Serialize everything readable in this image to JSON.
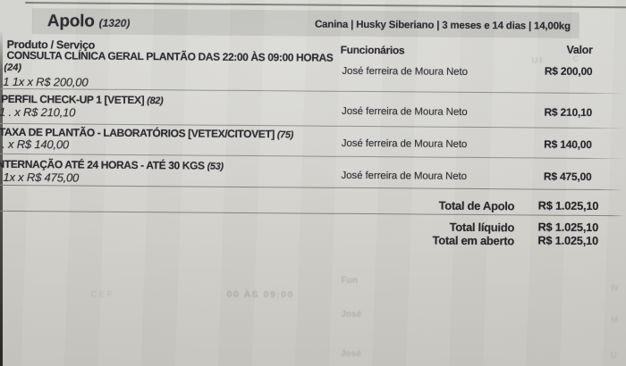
{
  "patient": {
    "name": "Apolo",
    "code": "(1320)",
    "info": "Canina | Husky Siberiano | 3 meses e 14 dias | 14,00kg"
  },
  "columns": {
    "product": "Produto / Serviço",
    "staff": "Funcionários",
    "value": "Valor"
  },
  "rows": [
    {
      "name": "CONSULTA CLÍNICA GERAL PLANTÃO DAS 22:00 ÀS 09:00 HORAS",
      "code": "(24)",
      "qty": "1 1x x R$ 200,00",
      "staff": "José ferreira de Moura Neto",
      "value": "R$ 200,00"
    },
    {
      "name": "PERFIL CHECK-UP 1 [VETEX]",
      "code": "(82)",
      "qty": "1 . x R$ 210,10",
      "staff": "José ferreira de Moura Neto",
      "value": "R$ 210,10"
    },
    {
      "name": "TAXA DE PLANTÃO - LABORATÓRIOS [VETEX/CITOVET]",
      "code": "(75)",
      "qty": "1 . x R$ 140,00",
      "staff": "José ferreira de Moura Neto",
      "value": "R$ 140,00"
    },
    {
      "name": "NTERNAÇÃO ATÉ 24 HORAS - ATÉ 30 KGS",
      "code": "(53)",
      "qty": "1x x R$ 475,00",
      "staff": "José ferreira de Moura Neto",
      "value": "R$ 475,00"
    }
  ],
  "totals": [
    {
      "label": "Total de Apolo",
      "value": "R$ 1.025,10"
    },
    {
      "label": "Total líquido",
      "value": "R$ 1.025,10"
    },
    {
      "label": "Total em aberto",
      "value": "R$ 1.025,10"
    }
  ],
  "ghosts": [
    {
      "text": "00 ÀS 09:00"
    },
    {
      "text": "Fun"
    },
    {
      "text": "José"
    },
    {
      "text": "José"
    },
    {
      "text": "UI"
    },
    {
      "text": "C"
    },
    {
      "text": "CEF"
    },
    {
      "text": "IV"
    },
    {
      "text": "M"
    },
    {
      "text": "U"
    }
  ],
  "colors": {
    "paper": "#d8d7d3",
    "title_bar": "#c6c6c2",
    "text": "#212126",
    "line": "#8d8d89"
  }
}
